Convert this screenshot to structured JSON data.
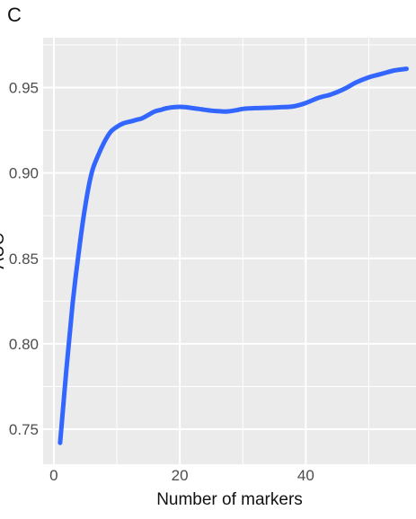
{
  "panel_label": "C",
  "chart_data": {
    "type": "line",
    "xlabel": "Number of markers",
    "ylabel": "AUC",
    "xlim": [
      -1.7,
      57.5
    ],
    "ylim": [
      0.7295,
      0.9792
    ],
    "x_ticks": [
      0,
      20,
      40
    ],
    "y_ticks": [
      0.75,
      0.8,
      0.85,
      0.9,
      0.95
    ],
    "y_tick_labels": [
      "0.75",
      "0.80",
      "0.85",
      "0.90",
      "0.95"
    ],
    "grid": true,
    "background": "#ebebeb",
    "grid_color": "#ffffff",
    "line_color": "#3366ff",
    "series": [
      {
        "x": [
          1,
          2,
          3,
          4,
          5,
          6,
          7,
          8,
          9,
          10,
          11,
          12,
          13,
          14,
          15,
          16,
          17,
          18,
          19,
          20,
          21,
          22,
          23,
          24,
          25,
          26,
          27,
          28,
          29,
          30,
          32,
          34,
          36,
          38,
          40,
          42,
          44,
          46,
          48,
          50,
          52,
          54,
          56
        ],
        "y": [
          0.742,
          0.785,
          0.824,
          0.855,
          0.881,
          0.9,
          0.91,
          0.918,
          0.924,
          0.927,
          0.929,
          0.93,
          0.931,
          0.932,
          0.934,
          0.936,
          0.937,
          0.938,
          0.9385,
          0.9387,
          0.9385,
          0.938,
          0.9375,
          0.937,
          0.9365,
          0.9362,
          0.936,
          0.9362,
          0.9368,
          0.9375,
          0.938,
          0.9382,
          0.9385,
          0.939,
          0.941,
          0.944,
          0.946,
          0.949,
          0.953,
          0.956,
          0.958,
          0.96,
          0.961
        ]
      }
    ]
  }
}
